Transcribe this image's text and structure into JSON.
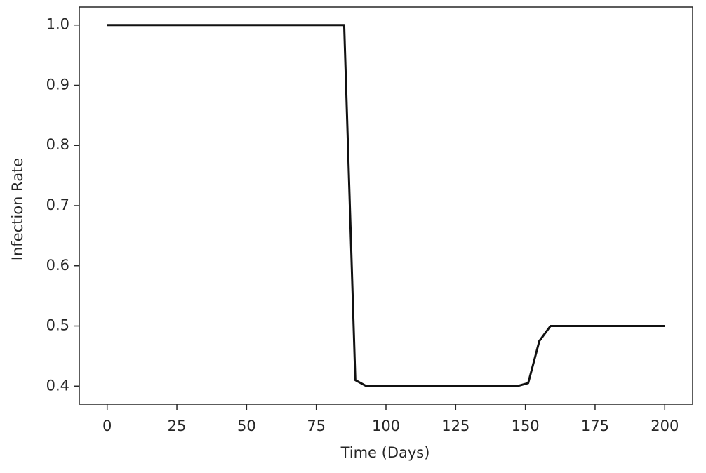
{
  "chart_data": {
    "type": "line",
    "x_label": "Time (Days)",
    "y_label": "Infection Rate",
    "x": [
      0,
      85,
      89,
      93,
      147,
      151,
      155,
      159,
      200
    ],
    "values": [
      1.0,
      1.0,
      0.41,
      0.4,
      0.4,
      0.405,
      0.475,
      0.5,
      0.5
    ],
    "color": "#111111",
    "xlim": [
      -10,
      210
    ],
    "xticks": [
      0,
      25,
      50,
      75,
      100,
      125,
      150,
      175,
      200
    ],
    "ylim": [
      0.37,
      1.03
    ],
    "yticks": [
      0.4,
      0.5,
      0.6,
      0.7,
      0.8,
      0.9,
      {
        "value": 1,
        "label": "1.0"
      }
    ],
    "grid": false
  }
}
